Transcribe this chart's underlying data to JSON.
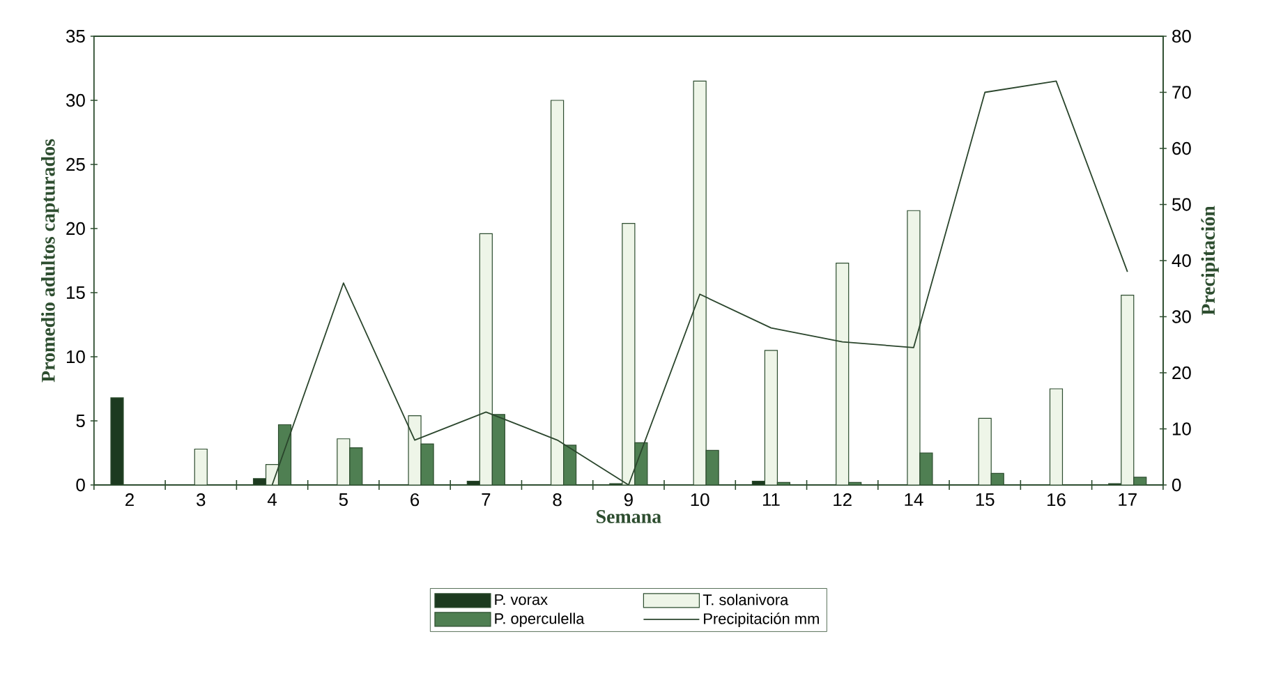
{
  "chart_data": {
    "type": "bar",
    "xlabel": "Semana",
    "ylabel": "Promedio adultos capturados",
    "y2label": "Precipitación",
    "categories": [
      "2",
      "3",
      "4",
      "5",
      "6",
      "7",
      "8",
      "9",
      "10",
      "11",
      "12",
      "14",
      "15",
      "16",
      "17"
    ],
    "series": [
      {
        "name": "P. vorax",
        "color": "#1c3a1f",
        "values": [
          6.8,
          null,
          0.5,
          null,
          null,
          0.3,
          null,
          0.1,
          null,
          0.3,
          null,
          null,
          null,
          null,
          0.1
        ]
      },
      {
        "name": "T. solanivora",
        "color": "#eef5e8",
        "values": [
          null,
          2.8,
          1.6,
          3.6,
          5.4,
          19.6,
          30,
          20.4,
          31.5,
          10.5,
          17.3,
          21.4,
          5.2,
          7.5,
          14.8
        ]
      },
      {
        "name": "P. operculella",
        "color": "#4f7f52",
        "values": [
          null,
          null,
          4.7,
          2.9,
          3.2,
          5.5,
          3.1,
          3.3,
          2.7,
          0.2,
          0.2,
          2.5,
          0.9,
          null,
          0.6
        ]
      },
      {
        "name": "Precipitación mm",
        "type": "line",
        "axis": "y2",
        "color": "#2a452c",
        "values": [
          null,
          null,
          0,
          36,
          8,
          13,
          8,
          0,
          34,
          28,
          25.5,
          24.5,
          70,
          72,
          38
        ]
      }
    ],
    "ylim": [
      0,
      35
    ],
    "yticks": [
      0,
      5,
      10,
      15,
      20,
      25,
      30,
      35
    ],
    "y2lim": [
      0,
      80
    ],
    "y2ticks": [
      0,
      10,
      20,
      30,
      40,
      50,
      60,
      70,
      80
    ],
    "grid": false,
    "legend": "bottom",
    "marker": "none",
    "line_style": "solid"
  }
}
